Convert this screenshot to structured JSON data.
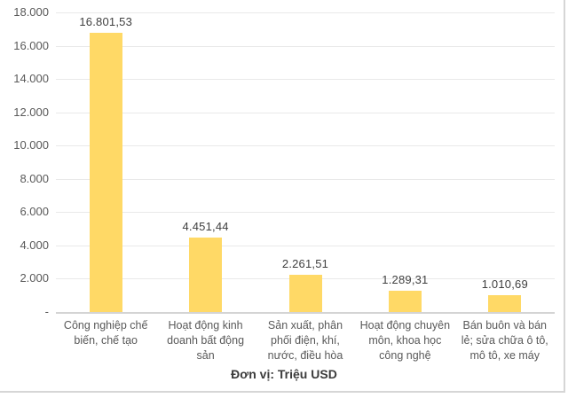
{
  "chart_data": {
    "type": "bar",
    "title": "",
    "unit_caption": "Đơn vị: Triệu USD",
    "categories": [
      "Công nghiệp chế biến, chế tạo",
      "Hoạt động kinh doanh bất động sản",
      "Sản xuất, phân phối điện, khí, nước, điều hòa",
      "Hoạt động chuyên môn, khoa học công nghệ",
      "Bán buôn và bán lẻ; sửa chữa ô tô, mô tô, xe máy"
    ],
    "values": [
      16801.53,
      4451.44,
      2261.51,
      1289.31,
      1010.69
    ],
    "value_labels": [
      "16.801,53",
      "4.451,44",
      "2.261,51",
      "1.289,31",
      "1.010,69"
    ],
    "ylim": [
      0,
      18000
    ],
    "y_ticks": [
      {
        "value": 18000,
        "label": "18.000"
      },
      {
        "value": 16000,
        "label": "16.000"
      },
      {
        "value": 14000,
        "label": "14.000"
      },
      {
        "value": 12000,
        "label": "12.000"
      },
      {
        "value": 10000,
        "label": "10.000"
      },
      {
        "value": 8000,
        "label": "8.000"
      },
      {
        "value": 6000,
        "label": "6.000"
      },
      {
        "value": 4000,
        "label": "4.000"
      },
      {
        "value": 2000,
        "label": "2.000"
      },
      {
        "value": 0,
        "label": "-"
      }
    ],
    "grid": true,
    "legend": "none",
    "colors": {
      "bar": "#FFD966",
      "gridline": "#e9e9e9",
      "axis_line": "#d4d4d4",
      "tick_text": "#595959",
      "category_text": "#595959",
      "data_label_text": "#3f3f3f",
      "caption_text": "#3b3b3b",
      "border": "#d6d6d6"
    }
  }
}
